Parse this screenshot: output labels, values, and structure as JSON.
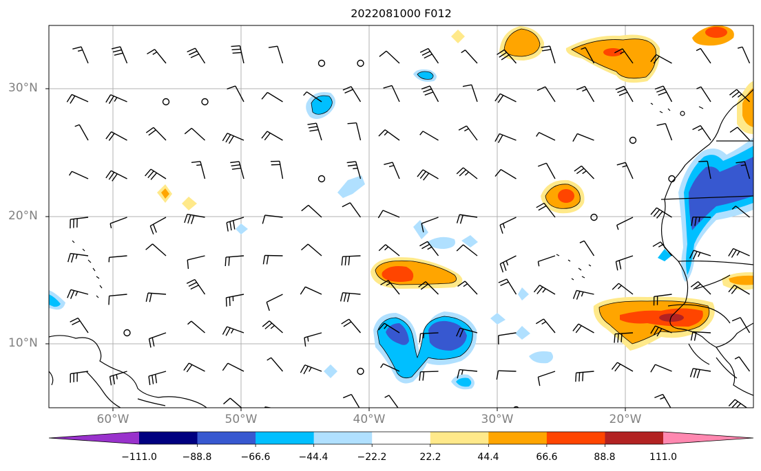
{
  "title": "2022081000 F012",
  "axes": {
    "lat_labels": [
      "30°N",
      "20°N",
      "10°N"
    ],
    "lon_labels": [
      "60°W",
      "50°W",
      "40°W",
      "30°W",
      "20°W"
    ]
  },
  "colorbar": {
    "tick_labels": [
      "−111.0",
      "−88.8",
      "−66.6",
      "−44.4",
      "−22.2",
      "22.2",
      "44.4",
      "66.6",
      "88.8",
      "111.0"
    ],
    "colors": [
      "#9932cc",
      "#000080",
      "#3758d0",
      "#00bfff",
      "#b0e0ff",
      "#ffffff",
      "#ffe98a",
      "#ffa500",
      "#ff4500",
      "#b22222",
      "#ff88b0"
    ]
  },
  "map": {
    "extent": {
      "lon_min": -65,
      "lon_max": -10,
      "lat_min": 5,
      "lat_max": 35
    },
    "gridlines": true,
    "fill_colors": {
      "light_blue": "#b0e0ff",
      "blue": "#00bfff",
      "dark_blue": "#3758d0",
      "yellow": "#ffe98a",
      "orange": "#ffa500",
      "red_orange": "#ff4500"
    }
  }
}
